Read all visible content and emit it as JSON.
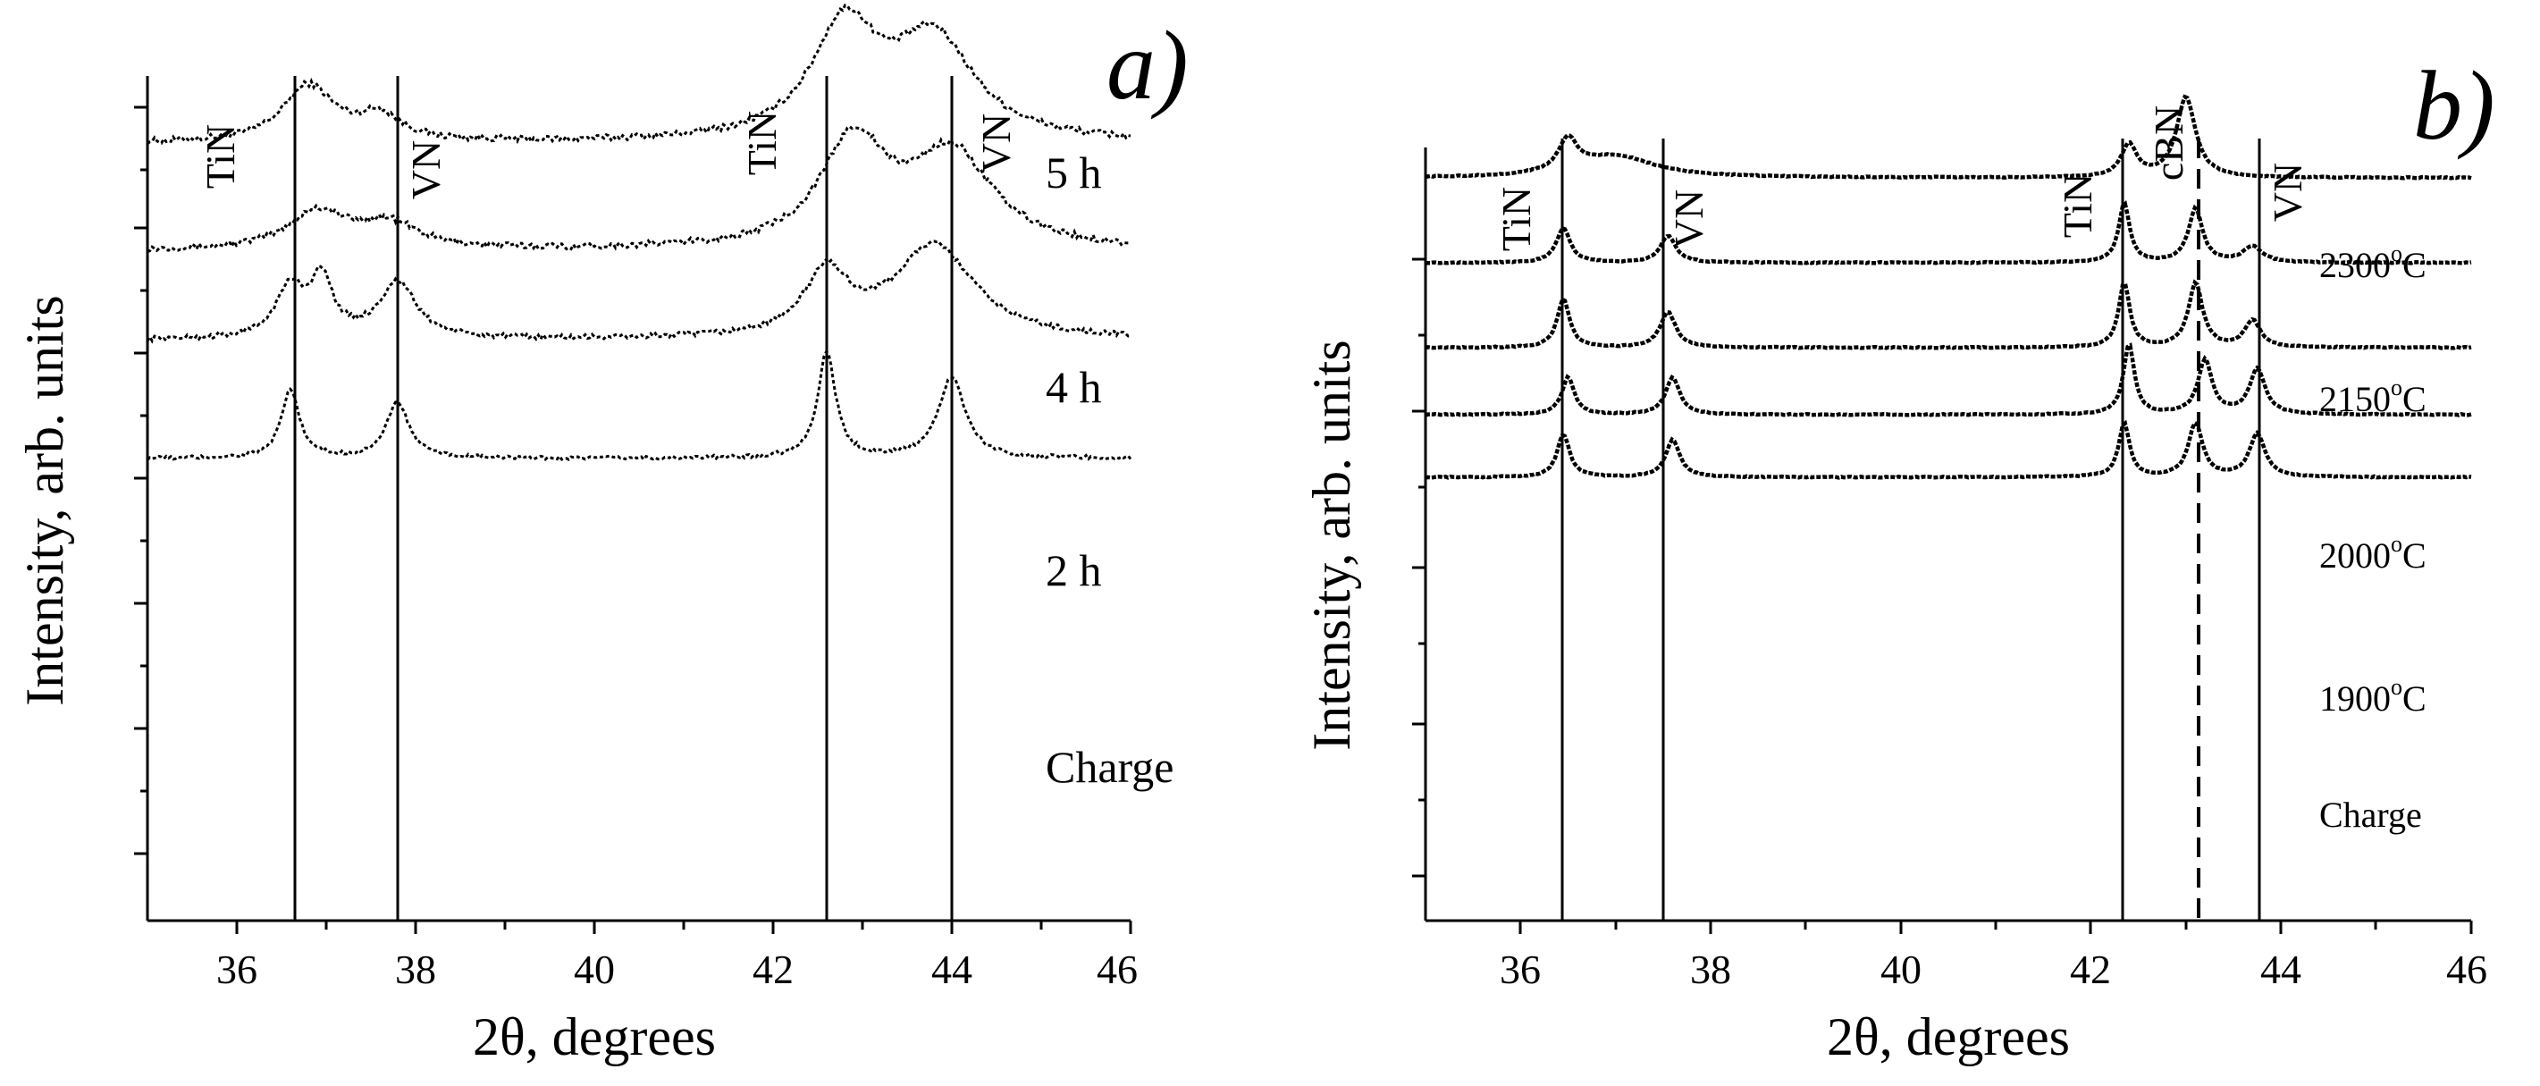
{
  "chart_data": [
    {
      "panel": "a)",
      "type": "line",
      "xlabel": "2θ, degrees",
      "ylabel": "Intensity, arb. units",
      "xlim": [
        35,
        46
      ],
      "xticks": [
        36,
        38,
        40,
        42,
        44,
        46
      ],
      "ref_lines": [
        {
          "x": 36.65,
          "label": "TiN",
          "style": "solid"
        },
        {
          "x": 37.8,
          "label": "VN",
          "style": "solid"
        },
        {
          "x": 42.6,
          "label": "TiN",
          "style": "solid"
        },
        {
          "x": 44.0,
          "label": "VN",
          "style": "solid"
        }
      ],
      "series": [
        {
          "name": "5 h",
          "offset": 3,
          "baseline": 0.1,
          "noise": 0.05,
          "peaks": [
            [
              36.8,
              0.45,
              0.35
            ],
            [
              37.6,
              0.2,
              0.3
            ],
            [
              42.8,
              0.9,
              0.45
            ],
            [
              43.8,
              0.8,
              0.55
            ]
          ]
        },
        {
          "name": "4 h",
          "offset": 2,
          "baseline": 0.1,
          "noise": 0.05,
          "peaks": [
            [
              36.9,
              0.3,
              0.4
            ],
            [
              37.7,
              0.2,
              0.4
            ],
            [
              42.9,
              0.85,
              0.45
            ],
            [
              44.0,
              0.75,
              0.55
            ]
          ]
        },
        {
          "name": "2 h",
          "offset": 1,
          "baseline": 0.1,
          "noise": 0.04,
          "peaks": [
            [
              36.6,
              0.4,
              0.2
            ],
            [
              36.95,
              0.45,
              0.15
            ],
            [
              37.8,
              0.45,
              0.25
            ],
            [
              42.6,
              0.5,
              0.3
            ],
            [
              43.8,
              0.75,
              0.55
            ]
          ]
        },
        {
          "name": "Charge",
          "offset": 0,
          "baseline": 0.05,
          "noise": 0.03,
          "peaks": [
            [
              36.6,
              0.55,
              0.12
            ],
            [
              37.8,
              0.45,
              0.15
            ],
            [
              42.6,
              0.85,
              0.12
            ],
            [
              44.0,
              0.65,
              0.18
            ]
          ]
        }
      ]
    },
    {
      "panel": "b)",
      "type": "line",
      "xlabel": "2θ, degrees",
      "ylabel": "Intensity, arb. units",
      "xlim": [
        35,
        46
      ],
      "xticks": [
        36,
        38,
        40,
        42,
        44,
        46
      ],
      "ref_lines": [
        {
          "x": 36.45,
          "label": "TiN",
          "style": "solid"
        },
        {
          "x": 37.6,
          "label": "VN",
          "style": "solid"
        },
        {
          "x": 42.35,
          "label": "TiN",
          "style": "solid"
        },
        {
          "x": 43.15,
          "label": "cBN",
          "style": "dashed"
        },
        {
          "x": 43.8,
          "label": "VN",
          "style": "solid"
        }
      ],
      "series": [
        {
          "name": "2300",
          "offset": 4,
          "baseline": 0.05,
          "noise": 0.01,
          "peaks": [
            [
              36.5,
              0.3,
              0.12
            ],
            [
              37.0,
              0.2,
              0.5
            ],
            [
              42.4,
              0.3,
              0.1
            ],
            [
              43.0,
              0.75,
              0.12
            ]
          ]
        },
        {
          "name": "2150",
          "offset": 3,
          "baseline": 0.05,
          "noise": 0.01,
          "peaks": [
            [
              36.45,
              0.32,
              0.09
            ],
            [
              37.55,
              0.25,
              0.1
            ],
            [
              42.35,
              0.55,
              0.07
            ],
            [
              43.1,
              0.5,
              0.09
            ],
            [
              43.7,
              0.15,
              0.12
            ]
          ]
        },
        {
          "name": "2000",
          "offset": 2,
          "baseline": 0.05,
          "noise": 0.01,
          "peaks": [
            [
              36.45,
              0.45,
              0.08
            ],
            [
              37.55,
              0.33,
              0.1
            ],
            [
              42.35,
              0.6,
              0.07
            ],
            [
              43.1,
              0.6,
              0.09
            ],
            [
              43.7,
              0.25,
              0.1
            ]
          ]
        },
        {
          "name": "1900",
          "offset": 1,
          "baseline": 0.05,
          "noise": 0.01,
          "peaks": [
            [
              36.5,
              0.35,
              0.08
            ],
            [
              37.6,
              0.35,
              0.09
            ],
            [
              42.4,
              0.65,
              0.07
            ],
            [
              43.2,
              0.5,
              0.09
            ],
            [
              43.75,
              0.42,
              0.1
            ]
          ]
        },
        {
          "name": "Charge",
          "offset": 0,
          "baseline": 0.05,
          "noise": 0.01,
          "peaks": [
            [
              36.45,
              0.4,
              0.08
            ],
            [
              37.6,
              0.35,
              0.09
            ],
            [
              42.35,
              0.5,
              0.07
            ],
            [
              43.1,
              0.5,
              0.09
            ],
            [
              43.75,
              0.4,
              0.1
            ]
          ]
        }
      ]
    }
  ],
  "panel_a": {
    "label": "a)",
    "xlabel": "2θ, degrees",
    "ylabel": "Intensity, arb. units",
    "ticks": [
      "36",
      "38",
      "40",
      "42",
      "44",
      "46"
    ],
    "phases": [
      "TiN",
      "VN",
      "TiN",
      "VN"
    ],
    "series_labels": [
      "5 h",
      "4 h",
      "2 h",
      "Charge"
    ]
  },
  "panel_b": {
    "label": "b)",
    "xlabel": "2θ, degrees",
    "ylabel": "Intensity, arb. units",
    "ticks": [
      "36",
      "38",
      "40",
      "42",
      "44",
      "46"
    ],
    "phases": [
      "TiN",
      "VN",
      "TiN",
      "cBN",
      "VN"
    ],
    "series_labels": [
      {
        "value": "2300",
        "unit": "C",
        "sup": "o"
      },
      {
        "value": "2150",
        "unit": "C",
        "sup": "o"
      },
      {
        "value": "2000",
        "unit": "C",
        "sup": "o"
      },
      {
        "value": "1900",
        "unit": "C",
        "sup": "o"
      },
      {
        "value": "Charge",
        "unit": "",
        "sup": ""
      }
    ]
  }
}
